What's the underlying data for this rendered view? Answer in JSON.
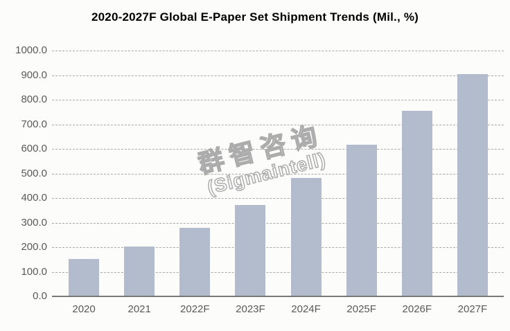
{
  "title": "2020-2027F Global E-Paper Set Shipment Trends (Mil., %)",
  "watermark": {
    "line1": "群智咨询",
    "line2": "(Sigmaintell)"
  },
  "chart_data": {
    "type": "bar",
    "title": "2020-2027F Global E-Paper Set Shipment Trends (Mil., %)",
    "categories": [
      "2020",
      "2021",
      "2022F",
      "2023F",
      "2024F",
      "2025F",
      "2026F",
      "2027F"
    ],
    "values": [
      152,
      204,
      279,
      371,
      482,
      616,
      756,
      905
    ],
    "xlabel": "",
    "ylabel": "",
    "ylim": [
      0,
      1000
    ],
    "ytick_step": 100,
    "ytick_labels": [
      "0.0",
      "100.0",
      "200.0",
      "300.0",
      "400.0",
      "500.0",
      "600.0",
      "700.0",
      "800.0",
      "900.0",
      "1000.0"
    ],
    "grid": "horizontal-dashed",
    "legend": "none",
    "colors": {
      "bar": "#B2BCCD",
      "gridline": "#A8A8A8",
      "axis_line": "#787878",
      "tick_label": "#595959",
      "title": "#000000",
      "background": "#FCFCFB",
      "watermark_outline": "#ACACAC",
      "watermark_fill": "#FFFFFF"
    }
  }
}
